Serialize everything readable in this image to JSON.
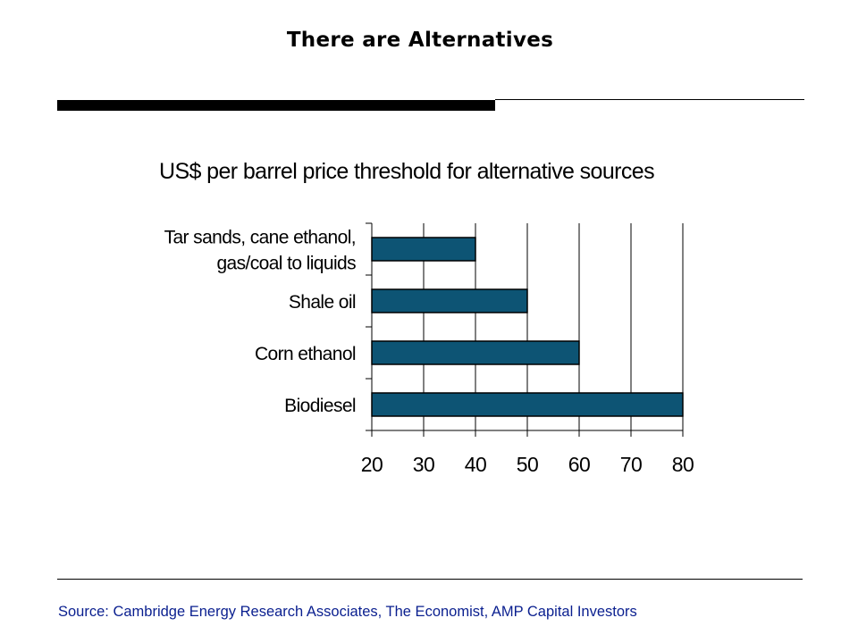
{
  "slide": {
    "title": "There are Alternatives",
    "source": "Source: Cambridge Energy Research Associates, The Economist, AMP Capital Investors"
  },
  "colors": {
    "bar_fill": "#0d5474",
    "bar_stroke": "#000000",
    "source_text": "#0a1f8f"
  },
  "chart_data": {
    "type": "bar",
    "orientation": "horizontal",
    "title": "US$ per barrel price threshold for alternative sources",
    "categories": [
      [
        "Tar sands, cane ethanol,",
        "gas/coal to liquids"
      ],
      [
        "Shale oil"
      ],
      [
        "Corn ethanol"
      ],
      [
        "Biodiesel"
      ]
    ],
    "values": [
      40,
      50,
      60,
      80
    ],
    "xlim": [
      20,
      80
    ],
    "xticks": [
      "20",
      "30",
      "40",
      "50",
      "60",
      "70",
      "80"
    ],
    "grid": true,
    "legend": "none"
  }
}
